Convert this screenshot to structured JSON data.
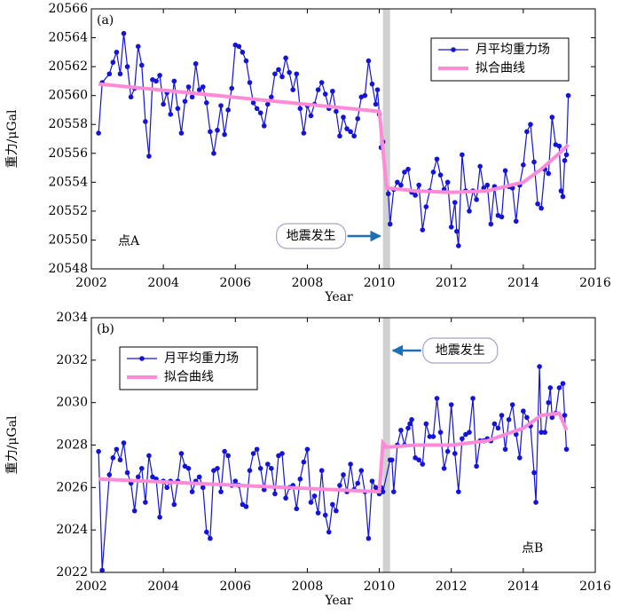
{
  "chart_data": [
    {
      "type": "line",
      "panel_label": "(a)",
      "site_label": "点A",
      "xlabel": "Year",
      "ylabel": "重力/μGal",
      "annotation": "地震发生",
      "event_band": [
        2010.1,
        2010.3
      ],
      "legend": "upper right",
      "xlim": [
        2002,
        2016
      ],
      "xticks": [
        2002,
        2004,
        2006,
        2008,
        2010,
        2012,
        2014,
        2016
      ],
      "ylim": [
        20548,
        20566
      ],
      "yticks": [
        20548,
        20550,
        20552,
        20554,
        20556,
        20558,
        20560,
        20562,
        20564,
        20566
      ],
      "series": [
        {
          "name": "月平均重力场",
          "color": "#1414d8",
          "marker": true,
          "x": [
            2002.2,
            2002.3,
            2002.5,
            2002.6,
            2002.7,
            2002.8,
            2002.9,
            2003.0,
            2003.1,
            2003.2,
            2003.3,
            2003.4,
            2003.5,
            2003.6,
            2003.7,
            2003.8,
            2003.9,
            2004.0,
            2004.1,
            2004.2,
            2004.3,
            2004.4,
            2004.5,
            2004.6,
            2004.7,
            2004.8,
            2004.9,
            2005.0,
            2005.1,
            2005.2,
            2005.3,
            2005.4,
            2005.5,
            2005.6,
            2005.7,
            2005.8,
            2005.9,
            2006.0,
            2006.1,
            2006.2,
            2006.3,
            2006.4,
            2006.5,
            2006.6,
            2006.7,
            2006.8,
            2006.9,
            2007.0,
            2007.1,
            2007.2,
            2007.3,
            2007.4,
            2007.5,
            2007.6,
            2007.7,
            2007.8,
            2007.9,
            2008.0,
            2008.1,
            2008.2,
            2008.3,
            2008.4,
            2008.5,
            2008.6,
            2008.7,
            2008.8,
            2008.9,
            2009.0,
            2009.1,
            2009.2,
            2009.3,
            2009.4,
            2009.5,
            2009.6,
            2009.7,
            2009.8,
            2009.9,
            2009.95,
            2010.0,
            2010.05,
            2010.1,
            2010.25,
            2010.3,
            2010.4,
            2010.5,
            2010.6,
            2010.7,
            2010.8,
            2010.9,
            2011.0,
            2011.1,
            2011.2,
            2011.3,
            2011.4,
            2011.5,
            2011.6,
            2011.7,
            2011.8,
            2011.9,
            2012.0,
            2012.1,
            2012.15,
            2012.2,
            2012.3,
            2012.4,
            2012.5,
            2012.6,
            2012.7,
            2012.8,
            2012.9,
            2013.0,
            2013.1,
            2013.2,
            2013.3,
            2013.4,
            2013.5,
            2013.6,
            2013.7,
            2013.8,
            2013.9,
            2014.0,
            2014.1,
            2014.2,
            2014.3,
            2014.4,
            2014.5,
            2014.6,
            2014.7,
            2014.8,
            2014.9,
            2015.0,
            2015.05,
            2015.1,
            2015.15,
            2015.2,
            2015.25
          ],
          "values": [
            20557.4,
            20560.9,
            20561.5,
            20562.3,
            20563.0,
            20561.5,
            20564.3,
            20562.0,
            20559.9,
            20560.5,
            20563.4,
            20562.1,
            20558.2,
            20555.8,
            20561.1,
            20561.0,
            20561.4,
            20559.4,
            20560.2,
            20558.7,
            20561.0,
            20559.1,
            20557.4,
            20559.6,
            20560.6,
            20559.9,
            20562.2,
            20560.4,
            20560.6,
            20559.5,
            20557.5,
            20556.0,
            20557.6,
            20559.3,
            20557.3,
            20559.0,
            20560.5,
            20563.5,
            20563.4,
            20563.0,
            20562.4,
            20560.9,
            20559.5,
            20559.1,
            20558.8,
            20557.9,
            20559.4,
            20559.9,
            20561.5,
            20561.8,
            20561.3,
            20562.6,
            20561.6,
            20560.4,
            20561.5,
            20559.1,
            20557.4,
            20559.3,
            20558.6,
            20559.4,
            20560.4,
            20560.9,
            20560.1,
            20559.1,
            20560.3,
            20558.9,
            20557.2,
            20558.5,
            20557.7,
            20557.5,
            20557.2,
            20558.4,
            20559.9,
            20560.0,
            20562.4,
            20560.8,
            20559.4,
            20560.4,
            20558.7,
            20556.4,
            20556.8,
            20553.2,
            20551.1,
            20553.5,
            20554.0,
            20553.8,
            20554.7,
            20554.9,
            20553.3,
            20553.1,
            20553.8,
            20550.7,
            20552.3,
            20553.4,
            20554.7,
            20555.6,
            20554.5,
            20553.5,
            20554.0,
            20550.9,
            20552.6,
            20550.6,
            20549.6,
            20555.9,
            20553.4,
            20552.0,
            20553.4,
            20552.8,
            20555.1,
            20553.6,
            20553.8,
            20551.1,
            20553.7,
            20551.7,
            20551.6,
            20554.8,
            20553.7,
            20553.6,
            20551.3,
            20553.8,
            20555.2,
            20557.5,
            20558.0,
            20555.4,
            20552.5,
            20552.2,
            20554.9,
            20554.6,
            20558.5,
            20556.6,
            20556.5,
            20553.4,
            20553.0,
            20555.5,
            20555.9,
            20560.0
          ]
        },
        {
          "name": "拟合曲线",
          "color": "#ff8ad8",
          "marker": false,
          "x": [
            2002.2,
            2010.0,
            2010.2,
            2011.0,
            2012.0,
            2013.0,
            2014.0,
            2014.5,
            2015.0,
            2015.25
          ],
          "values": [
            20560.8,
            20558.9,
            20553.6,
            20553.4,
            20553.3,
            20553.4,
            20554.0,
            20554.9,
            20556.0,
            20556.6
          ]
        }
      ]
    },
    {
      "type": "line",
      "panel_label": "(b)",
      "site_label": "点B",
      "xlabel": "Year",
      "ylabel": "重力/μGal",
      "annotation": "地震发生",
      "event_band": [
        2010.1,
        2010.3
      ],
      "legend": "upper left",
      "xlim": [
        2002,
        2016
      ],
      "xticks": [
        2002,
        2004,
        2006,
        2008,
        2010,
        2012,
        2014,
        2016
      ],
      "ylim": [
        2022,
        2034
      ],
      "yticks": [
        2022,
        2024,
        2026,
        2028,
        2030,
        2032,
        2034
      ],
      "series": [
        {
          "name": "月平均重力场",
          "color": "#1414d8",
          "marker": true,
          "x": [
            2002.2,
            2002.3,
            2002.5,
            2002.6,
            2002.7,
            2002.8,
            2002.9,
            2003.0,
            2003.1,
            2003.2,
            2003.3,
            2003.4,
            2003.5,
            2003.6,
            2003.7,
            2003.8,
            2003.9,
            2004.0,
            2004.1,
            2004.2,
            2004.3,
            2004.4,
            2004.5,
            2004.6,
            2004.7,
            2004.8,
            2004.9,
            2005.0,
            2005.1,
            2005.2,
            2005.3,
            2005.4,
            2005.5,
            2005.6,
            2005.7,
            2005.8,
            2005.9,
            2006.0,
            2006.1,
            2006.2,
            2006.3,
            2006.4,
            2006.5,
            2006.6,
            2006.7,
            2006.8,
            2006.9,
            2007.0,
            2007.1,
            2007.2,
            2007.3,
            2007.4,
            2007.5,
            2007.6,
            2007.7,
            2007.8,
            2007.9,
            2008.0,
            2008.1,
            2008.2,
            2008.3,
            2008.4,
            2008.5,
            2008.6,
            2008.7,
            2008.8,
            2008.9,
            2009.0,
            2009.1,
            2009.2,
            2009.3,
            2009.4,
            2009.5,
            2009.6,
            2009.7,
            2009.8,
            2009.9,
            2010.0,
            2010.05,
            2010.1,
            2010.3,
            2010.35,
            2010.4,
            2010.5,
            2010.6,
            2010.7,
            2010.8,
            2010.85,
            2010.9,
            2011.0,
            2011.1,
            2011.2,
            2011.3,
            2011.4,
            2011.5,
            2011.6,
            2011.7,
            2011.8,
            2011.9,
            2012.0,
            2012.1,
            2012.2,
            2012.3,
            2012.4,
            2012.5,
            2012.6,
            2012.7,
            2012.8,
            2012.9,
            2013.0,
            2013.1,
            2013.2,
            2013.3,
            2013.4,
            2013.5,
            2013.6,
            2013.7,
            2013.8,
            2013.9,
            2014.0,
            2014.1,
            2014.2,
            2014.3,
            2014.35,
            2014.45,
            2014.5,
            2014.6,
            2014.7,
            2014.75,
            2014.8,
            2014.9,
            2015.0,
            2015.1,
            2015.15,
            2015.2
          ],
          "values": [
            2027.7,
            2022.1,
            2026.6,
            2027.4,
            2027.8,
            2027.3,
            2028.1,
            2026.7,
            2026.2,
            2024.9,
            2026.5,
            2026.9,
            2025.3,
            2027.5,
            2026.5,
            2026.4,
            2024.6,
            2026.3,
            2026.0,
            2026.3,
            2025.2,
            2026.3,
            2027.6,
            2027.0,
            2026.9,
            2025.8,
            2026.3,
            2026.5,
            2026.0,
            2023.9,
            2023.6,
            2026.8,
            2026.9,
            2025.8,
            2027.7,
            2027.5,
            2026.1,
            2026.3,
            2026.1,
            2025.2,
            2025.1,
            2026.8,
            2027.6,
            2027.8,
            2026.9,
            2025.9,
            2027.1,
            2026.9,
            2025.7,
            2027.5,
            2027.6,
            2025.5,
            2026.0,
            2026.1,
            2025.0,
            2026.4,
            2027.2,
            2027.8,
            2025.3,
            2025.6,
            2024.8,
            2026.8,
            2024.7,
            2023.9,
            2025.2,
            2024.9,
            2026.1,
            2026.6,
            2025.8,
            2027.1,
            2025.9,
            2026.2,
            2026.8,
            2025.8,
            2023.6,
            2026.3,
            2026.0,
            2025.7,
            2026.0,
            2025.8,
            2027.3,
            2027.3,
            2025.8,
            2028.0,
            2028.7,
            2028.0,
            2028.8,
            2029.0,
            2029.2,
            2027.4,
            2027.3,
            2027.1,
            2029.0,
            2028.4,
            2028.4,
            2030.2,
            2028.6,
            2026.9,
            2027.7,
            2029.9,
            2027.6,
            2025.8,
            2028.3,
            2028.5,
            2028.6,
            2030.2,
            2027.0,
            2028.2,
            2028.2,
            2028.3,
            2028.2,
            2029.0,
            2028.8,
            2029.4,
            2027.8,
            2029.2,
            2029.9,
            2028.5,
            2027.4,
            2029.6,
            2029.3,
            2028.9,
            2026.7,
            2025.3,
            2031.7,
            2028.6,
            2028.6,
            2030.0,
            2030.7,
            2029.3,
            2029.5,
            2030.7,
            2030.9,
            2029.4,
            2027.8
          ]
        },
        {
          "name": "拟合曲线",
          "color": "#ff8ad8",
          "marker": false,
          "x": [
            2002.2,
            2010.0,
            2010.1,
            2010.2,
            2011.0,
            2012.0,
            2013.0,
            2014.0,
            2014.5,
            2015.0,
            2015.2
          ],
          "values": [
            2026.4,
            2025.8,
            2028.1,
            2027.9,
            2028.0,
            2028.0,
            2028.2,
            2028.8,
            2029.4,
            2029.5,
            2028.7
          ]
        }
      ]
    }
  ]
}
